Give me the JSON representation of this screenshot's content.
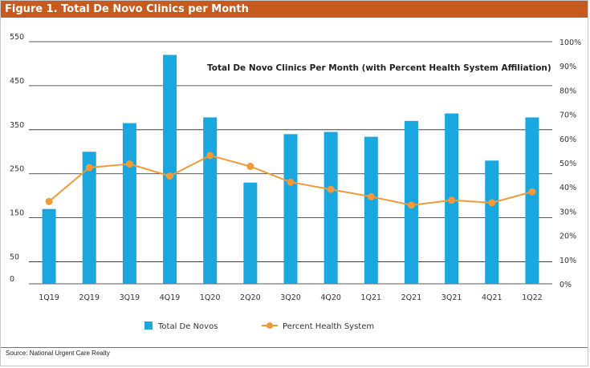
{
  "figure": {
    "header": "Figure 1. Total De Novo Clinics per Month",
    "source": "Source: National Urgent Care Realty"
  },
  "colors": {
    "bar": "#1aa7e0",
    "line": "#f39a38",
    "header_bg": "#c75a1f"
  },
  "chart_data": {
    "type": "bar",
    "title": "Total De Novo Clinics Per Month (with Percent Health System Affiliation)",
    "categories": [
      "1Q19",
      "2Q19",
      "3Q19",
      "4Q19",
      "1Q20",
      "2Q20",
      "3Q20",
      "4Q20",
      "1Q21",
      "2Q21",
      "3Q21",
      "4Q21",
      "1Q22"
    ],
    "series": [
      {
        "name": "Total De Novos",
        "type": "bar",
        "axis": "left",
        "values": [
          170,
          300,
          365,
          520,
          378,
          230,
          340,
          345,
          334,
          370,
          387,
          280,
          378
        ]
      },
      {
        "name": "Percent Health System",
        "type": "line",
        "axis": "right",
        "values": [
          34,
          48,
          49.5,
          44.5,
          53,
          48.5,
          42,
          39,
          36,
          32.5,
          34.5,
          33.5,
          38
        ]
      }
    ],
    "y_left": {
      "ticks": [
        0,
        50,
        150,
        250,
        350,
        450,
        550
      ],
      "lim": [
        0,
        550
      ]
    },
    "y_right": {
      "ticks": [
        "0%",
        "10%",
        "20%",
        "30%",
        "40%",
        "50%",
        "60%",
        "70%",
        "80%",
        "90%",
        "100%"
      ],
      "lim": [
        0,
        100
      ]
    },
    "grid": true,
    "legend_position": "bottom"
  }
}
